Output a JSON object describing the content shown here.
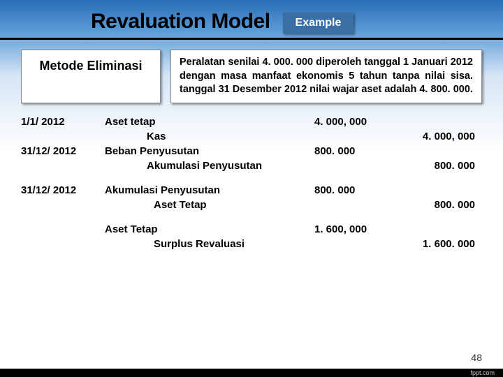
{
  "header": {
    "title": "Revaluation Model",
    "badge": "Example"
  },
  "method_label": "Metode Eliminasi",
  "description": "Peralatan senilai 4. 000. 000 diperoleh tanggal 1 Januari 2012 dengan masa manfaat ekonomis 5 tahun tanpa nilai sisa. tanggal 31 Desember 2012 nilai wajar aset adalah 4. 800. 000.",
  "entries": [
    {
      "date": "1/1/ 2012",
      "account": "Aset tetap",
      "indent": 0,
      "dr": "4. 000, 000",
      "cr": ""
    },
    {
      "date": "",
      "account": "Kas",
      "indent": 1,
      "dr": "",
      "cr": "4. 000, 000"
    },
    {
      "date": "31/12/ 2012",
      "account": "Beban Penyusutan",
      "indent": 0,
      "dr": "800. 000",
      "cr": ""
    },
    {
      "date": "",
      "account": "Akumulasi Penyusutan",
      "indent": 1,
      "dr": "",
      "cr": "800. 000"
    },
    {
      "spacer": true
    },
    {
      "date": "31/12/ 2012",
      "account": "Akumulasi Penyusutan",
      "indent": 0,
      "dr": "800. 000",
      "cr": ""
    },
    {
      "date": "",
      "account": "Aset Tetap",
      "indent": 2,
      "dr": "",
      "cr": "800. 000"
    },
    {
      "spacer": true
    },
    {
      "date": "",
      "account": "Aset Tetap",
      "indent": 0,
      "dr": "1. 600, 000",
      "cr": ""
    },
    {
      "date": "",
      "account": "Surplus Revaluasi",
      "indent": 2,
      "dr": "",
      "cr": "1. 600. 000"
    }
  ],
  "page_number": "48",
  "brand": "fppt.com"
}
